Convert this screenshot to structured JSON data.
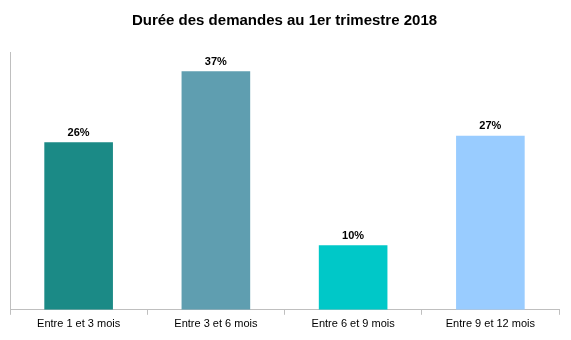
{
  "chart_data": {
    "type": "bar",
    "title": "Durée des demandes au 1er trimestre 2018",
    "categories": [
      "Entre 1 et 3 mois",
      "Entre 3 et 6 mois",
      "Entre 6 et 9 mois",
      "Entre 9 et 12 mois"
    ],
    "values": [
      26,
      37,
      10,
      27
    ],
    "value_labels": [
      "26%",
      "37%",
      "10%",
      "27%"
    ],
    "colors": [
      "#1b8a86",
      "#5f9eb0",
      "#00c8c8",
      "#99ccff"
    ],
    "ylim": [
      0,
      40
    ],
    "grid": false,
    "data_labels": true,
    "tick_labels": "x"
  }
}
